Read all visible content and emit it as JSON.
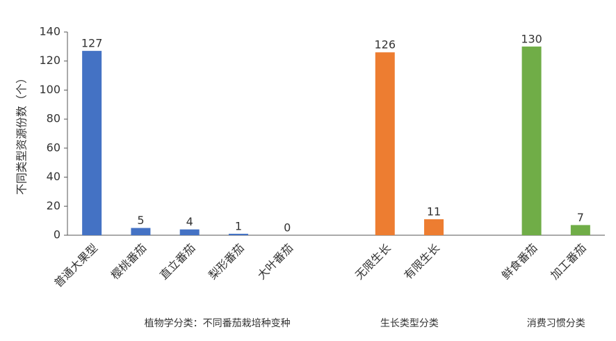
{
  "chart_data": {
    "type": "bar",
    "y_label": "不同类型资源份数（个）",
    "categories": [
      "普通大果型",
      "樱桃番茄",
      "直立番茄",
      "梨形番茄",
      "大叶番茄",
      null,
      "无限生长",
      "有限生长",
      null,
      "鲜食番茄",
      "加工番茄"
    ],
    "values": [
      127,
      5,
      4,
      1,
      0,
      null,
      126,
      11,
      null,
      130,
      7
    ],
    "colors": [
      "#4472c4",
      "#4472c4",
      "#4472c4",
      "#4472c4",
      "#4472c4",
      null,
      "#ed7d31",
      "#ed7d31",
      null,
      "#70ad47",
      "#70ad47"
    ],
    "group_labels": [
      "植物学分类：不同番茄栽培种变种",
      "生长类型分类",
      "消费习惯分类"
    ],
    "ylim": [
      0,
      140
    ],
    "yticks": [
      0,
      20,
      40,
      60,
      80,
      100,
      120,
      140
    ],
    "grid": false,
    "value_labels_shown": true
  }
}
